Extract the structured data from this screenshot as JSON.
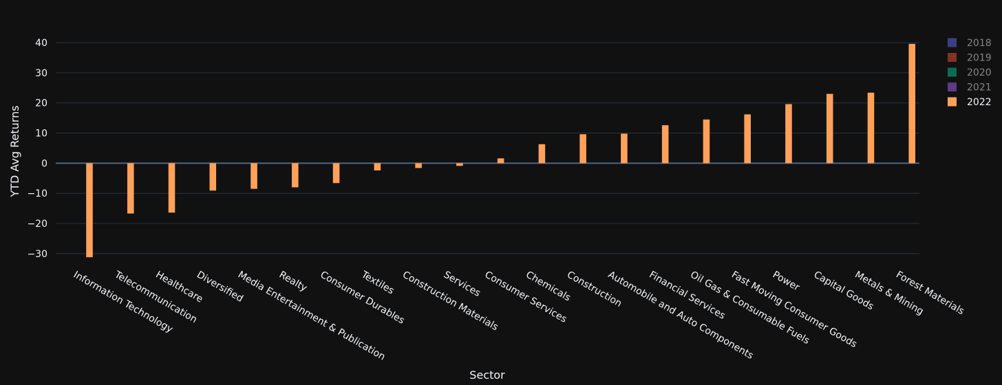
{
  "chart_data": {
    "type": "bar",
    "x_label": "Sector",
    "y_label": "YTD Avg Returns",
    "categories": [
      "Information Technology",
      "Telecommunication",
      "Healthcare",
      "Diversified",
      "Media Entertainment & Publication",
      "Realty",
      "Consumer Durables",
      "Textiles",
      "Construction Materials",
      "Services",
      "Consumer Services",
      "Chemicals",
      "Construction",
      "Automobile and Auto Components",
      "Financial Services",
      "Oil Gas & Consumable Fuels",
      "Fast Moving Consumer Goods",
      "Power",
      "Capital Goods",
      "Metals & Mining",
      "Forest Materials"
    ],
    "legend_hidden": [
      {
        "name": "2018",
        "color": "#636efa"
      },
      {
        "name": "2019",
        "color": "#ef553b"
      },
      {
        "name": "2020",
        "color": "#00cc96"
      },
      {
        "name": "2021",
        "color": "#ab63fa"
      }
    ],
    "series": [
      {
        "name": "2022",
        "color": "#ffa15a",
        "values": [
          -31.2,
          -16.7,
          -16.4,
          -9.1,
          -8.5,
          -8.0,
          -6.6,
          -2.4,
          -1.6,
          -0.9,
          1.6,
          6.3,
          9.6,
          9.8,
          12.6,
          14.5,
          16.2,
          19.6,
          23.0,
          23.4,
          39.6
        ]
      }
    ],
    "ylim": [
      -33,
      44
    ],
    "yticks": [
      {
        "value": -30,
        "label": "−30"
      },
      {
        "value": -20,
        "label": "−20"
      },
      {
        "value": -10,
        "label": "−10"
      },
      0,
      10,
      20,
      30,
      40
    ],
    "grid": true,
    "legend_position": "right"
  }
}
